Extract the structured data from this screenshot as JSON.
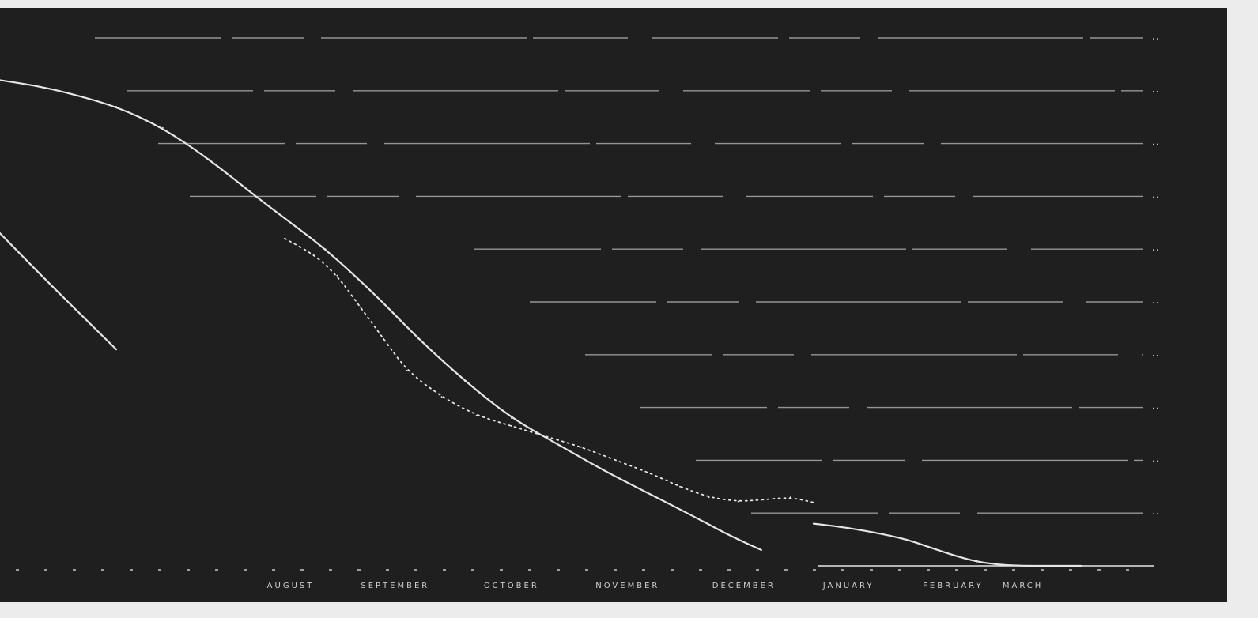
{
  "colors": {
    "background": "#1f1f1f",
    "frame": "#ececec",
    "lines": "#e6e6e6",
    "grid": "#bdbdbd",
    "text": "#c9c9c9"
  },
  "chart_data": {
    "type": "line",
    "title": "",
    "xlabel": "",
    "ylabel": "",
    "xlim": [
      0,
      100
    ],
    "ylim": [
      0,
      10
    ],
    "grid": true,
    "legend": "none",
    "month_labels": [
      "AUGUST",
      "SEPTEMBER",
      "OCTOBER",
      "NOVEMBER",
      "DECEMBER",
      "JANUARY",
      "FEBRUARY",
      "MARCH"
    ],
    "month_positions": [
      25,
      34,
      44,
      54,
      64,
      73,
      82,
      88
    ],
    "series": [
      {
        "style": "solid",
        "x": [
          0,
          3,
          6,
          10,
          14,
          18,
          22,
          25,
          28,
          32,
          36,
          40,
          44,
          48,
          52,
          56,
          60,
          63,
          65.5
        ],
        "y": [
          9.2,
          9.1,
          8.95,
          8.7,
          8.3,
          7.7,
          7.0,
          6.5,
          6.0,
          5.2,
          4.3,
          3.5,
          2.8,
          2.3,
          1.8,
          1.35,
          0.9,
          0.55,
          0.3
        ]
      },
      {
        "style": "solid",
        "x": [
          70,
          73,
          76,
          78,
          80,
          82,
          84,
          86,
          88,
          90,
          93
        ],
        "y": [
          0.8,
          0.72,
          0.6,
          0.5,
          0.35,
          0.2,
          0.08,
          0.02,
          0.0,
          0.0,
          0.0
        ]
      },
      {
        "style": "solid",
        "x": [
          0,
          4,
          10
        ],
        "y": [
          6.3,
          5.4,
          4.1
        ]
      },
      {
        "style": "dotted",
        "x": [
          24.5,
          27,
          29,
          31,
          33,
          35,
          38,
          41,
          44,
          47,
          50,
          53,
          56,
          58.5,
          61,
          63.5,
          65.5,
          68,
          70
        ],
        "y": [
          6.2,
          5.9,
          5.5,
          4.9,
          4.3,
          3.7,
          3.2,
          2.85,
          2.65,
          2.45,
          2.25,
          2.0,
          1.75,
          1.5,
          1.3,
          1.22,
          1.25,
          1.3,
          1.2
        ]
      }
    ],
    "gridlines_y": [
      10,
      9,
      8,
      7,
      6,
      5,
      4,
      3,
      2,
      1
    ]
  }
}
